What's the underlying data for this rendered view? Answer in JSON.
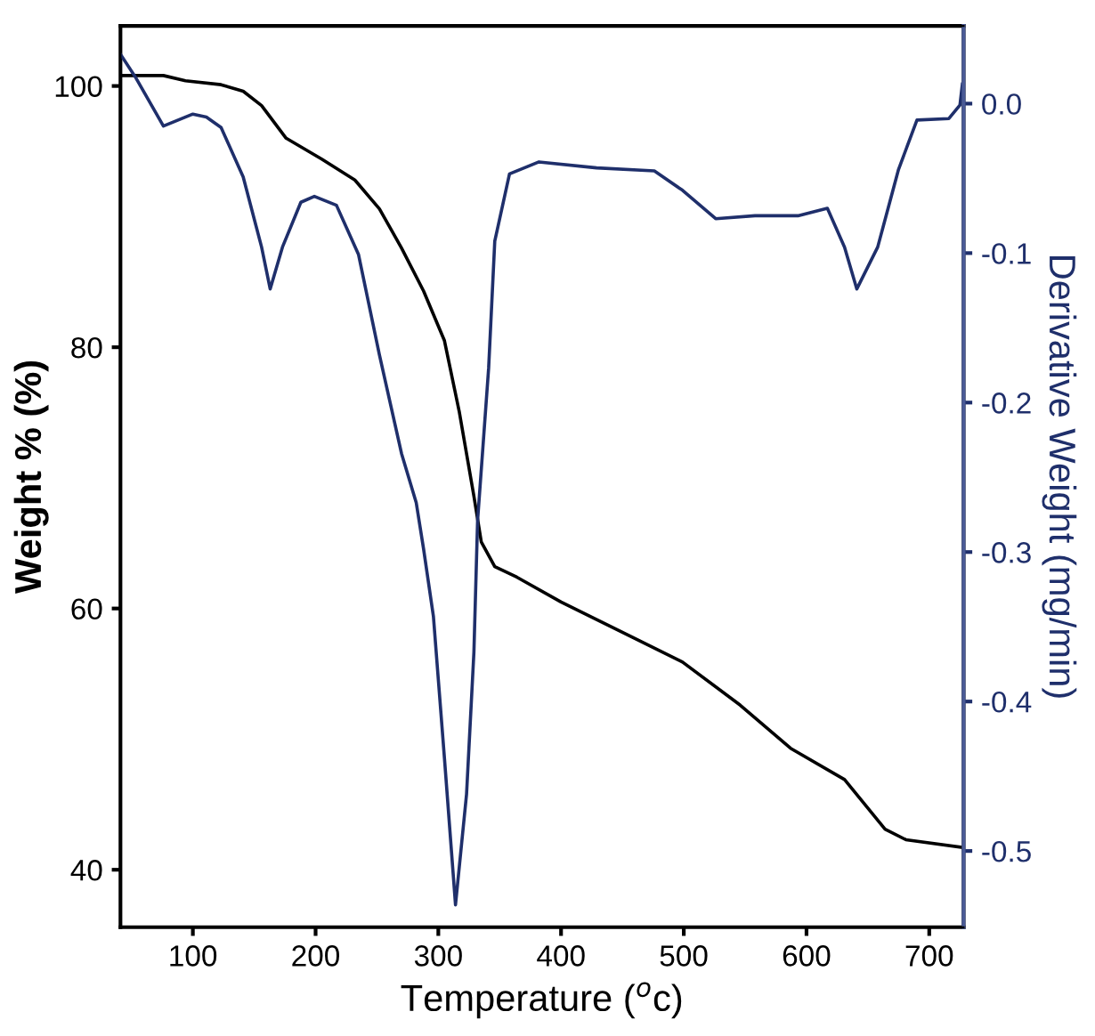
{
  "chart_data": {
    "type": "line",
    "xlabel": "Temperature ($^{o}$c)",
    "ylabel": "Weight % (%)",
    "y2label": "Derivative Weight (mg/min)",
    "xlim": [
      41,
      728
    ],
    "xticks": [
      100,
      200,
      300,
      400,
      500,
      600,
      700
    ],
    "ylim": [
      35.6,
      104.6
    ],
    "yticks": [
      40,
      60,
      80,
      100
    ],
    "y2lim": [
      -0.551,
      0.052
    ],
    "y2ticks": [
      -0.5,
      -0.4,
      -0.3,
      -0.2,
      -0.1,
      {
        "value": 0,
        "label": "0.0"
      }
    ],
    "grid": false,
    "legend": false,
    "marker": "none",
    "line_style": "solid",
    "series": [
      {
        "color": "#000000",
        "x": [
          41,
          76,
          94,
          123,
          141,
          156,
          176,
          205,
          232,
          252,
          270,
          288,
          305,
          317,
          329,
          335,
          346,
          364,
          400,
          458,
          499,
          546,
          587,
          631,
          664,
          681,
          728
        ],
        "values": [
          100.8,
          100.8,
          100.4,
          100.1,
          99.6,
          98.5,
          96.0,
          94.4,
          92.8,
          90.6,
          87.6,
          84.3,
          80.5,
          75.1,
          68.6,
          65.1,
          63.2,
          62.4,
          60.5,
          57.8,
          55.9,
          52.6,
          49.3,
          46.9,
          43.1,
          42.3,
          41.7
        ]
      },
      {
        "color": "#1f2f6b",
        "axis": "y2",
        "x": [
          41,
          53,
          76,
          88,
          100,
          111,
          123,
          141,
          156,
          163,
          173,
          188,
          199,
          217,
          235,
          252,
          270,
          282,
          288,
          296,
          305,
          314,
          323,
          329,
          332,
          341,
          346,
          358,
          382,
          429,
          476,
          499,
          526,
          558,
          593,
          617,
          631,
          641,
          658,
          675,
          690,
          716,
          725,
          727
        ],
        "values": [
          0.033,
          0.018,
          -0.015,
          -0.011,
          -0.007,
          -0.009,
          -0.016,
          -0.049,
          -0.096,
          -0.124,
          -0.096,
          -0.066,
          -0.062,
          -0.068,
          -0.101,
          -0.168,
          -0.234,
          -0.267,
          -0.298,
          -0.343,
          -0.438,
          -0.536,
          -0.462,
          -0.367,
          -0.279,
          -0.177,
          -0.092,
          -0.047,
          -0.039,
          -0.043,
          -0.045,
          -0.058,
          -0.077,
          -0.075,
          -0.075,
          -0.07,
          -0.096,
          -0.124,
          -0.096,
          -0.044,
          -0.011,
          -0.01,
          -0.001,
          0.013
        ]
      }
    ]
  }
}
